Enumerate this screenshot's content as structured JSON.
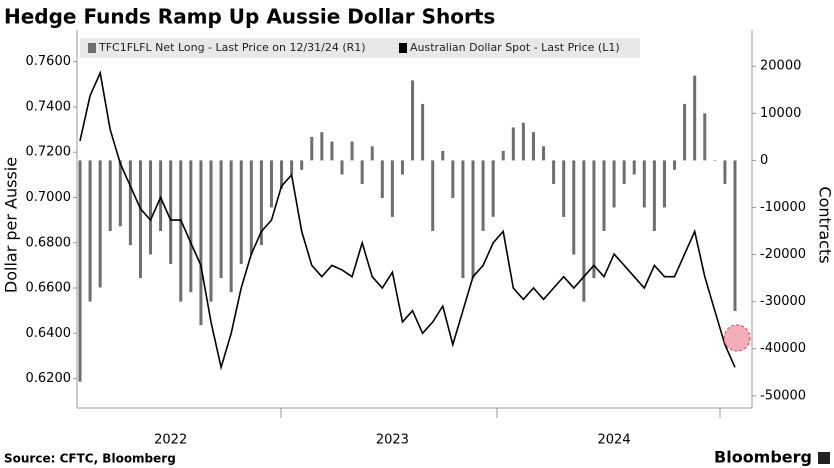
{
  "chart_data": {
    "type": "combo",
    "title": "Hedge Funds Ramp Up Aussie Dollar Shorts",
    "y_label": "Dollar per Aussie",
    "y2_label": "Contracts",
    "source": "Source: CFTC, Bloomberg",
    "brand": "Bloomberg",
    "categories": [
      null,
      null,
      null,
      null,
      null,
      null,
      null,
      null,
      null,
      "2022",
      null,
      null,
      null,
      null,
      null,
      null,
      null,
      null,
      null,
      null,
      null,
      null,
      null,
      null,
      null,
      null,
      null,
      null,
      null,
      null,
      null,
      "2023",
      null,
      null,
      null,
      null,
      null,
      null,
      null,
      null,
      null,
      null,
      null,
      null,
      null,
      null,
      null,
      null,
      null,
      null,
      null,
      null,
      null,
      "2024",
      null,
      null,
      null,
      null,
      null,
      null,
      null,
      null,
      null,
      null,
      null,
      null
    ],
    "series": [
      {
        "name": "TFC1FLFL Net Long - Last Price on 12/31/24 (R1)",
        "type": "bar",
        "axis": "y2",
        "color": "#6e6e6e",
        "values": [
          -47000,
          -30000,
          -27000,
          -15000,
          -14000,
          -18000,
          -25000,
          -20000,
          -15000,
          -22000,
          -30000,
          -28000,
          -35000,
          -30000,
          -25000,
          -28000,
          -22000,
          -20000,
          -18000,
          -10000,
          -6000,
          -3000,
          -2000,
          5000,
          6000,
          4000,
          -3000,
          4000,
          -5000,
          3000,
          -8000,
          -12000,
          -3000,
          17000,
          12000,
          -15000,
          2000,
          -8000,
          -25000,
          -25000,
          -15000,
          -12000,
          2000,
          7000,
          8000,
          6000,
          3000,
          -5000,
          -12000,
          -20000,
          -30000,
          -25000,
          -15000,
          -10000,
          -5000,
          -3000,
          -10000,
          -15000,
          -10000,
          -2000,
          12000,
          18000,
          10000,
          0,
          -5000,
          -32000
        ]
      },
      {
        "name": "Australian Dollar Spot - Last Price (L1)",
        "type": "line",
        "color": "#000000",
        "values": [
          0.725,
          0.745,
          0.755,
          0.73,
          0.715,
          0.705,
          0.695,
          0.69,
          0.7,
          0.69,
          0.69,
          0.68,
          0.67,
          0.645,
          0.625,
          0.64,
          0.66,
          0.675,
          0.685,
          0.69,
          0.705,
          0.71,
          0.685,
          0.67,
          0.665,
          0.67,
          0.668,
          0.665,
          0.68,
          0.665,
          0.66,
          0.667,
          0.645,
          0.65,
          0.64,
          0.645,
          0.652,
          0.635,
          0.65,
          0.665,
          0.67,
          0.68,
          0.685,
          0.66,
          0.655,
          0.66,
          0.655,
          0.66,
          0.665,
          0.66,
          0.665,
          0.67,
          0.665,
          0.675,
          0.67,
          0.665,
          0.66,
          0.67,
          0.665,
          0.665,
          0.675,
          0.685,
          0.665,
          0.65,
          0.635,
          0.625
        ]
      }
    ],
    "ylim": [
      0.607,
      0.774
    ],
    "yticks": [
      {
        "value": 0.62,
        "label": "0.6200"
      },
      {
        "value": 0.64,
        "label": "0.6400"
      },
      {
        "value": 0.66,
        "label": "0.6600"
      },
      {
        "value": 0.68,
        "label": "0.6800"
      },
      {
        "value": 0.7,
        "label": "0.7000"
      },
      {
        "value": 0.72,
        "label": "0.7200"
      },
      {
        "value": 0.74,
        "label": "0.7400"
      },
      {
        "value": 0.76,
        "label": "0.7600"
      }
    ],
    "y2lim": [
      -52600,
      27700
    ],
    "y2ticks": [
      -50000,
      -40000,
      -30000,
      -20000,
      -10000,
      0,
      10000,
      20000
    ]
  }
}
